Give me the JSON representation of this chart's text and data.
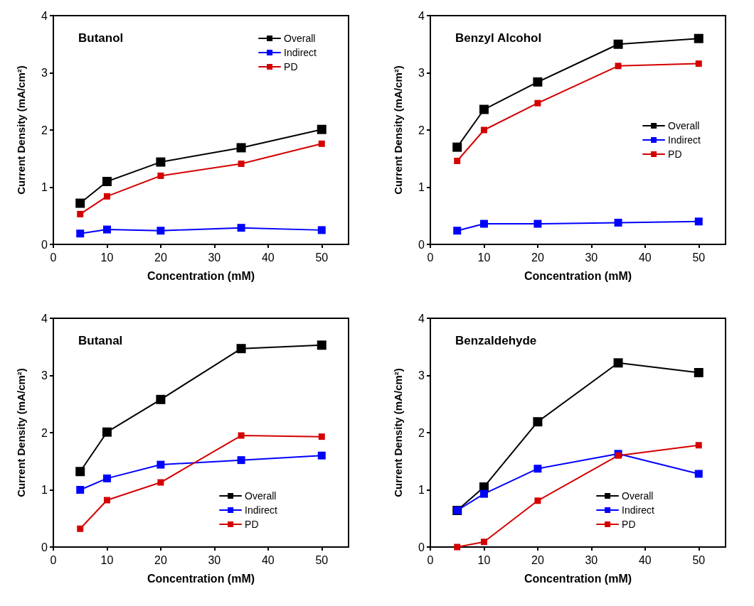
{
  "chart_data": [
    {
      "type": "line",
      "title": "Butanol",
      "xlabel": "Concentration (mM)",
      "ylabel": "Current Density (mA/cm²)",
      "x": [
        5,
        10,
        20,
        35,
        50
      ],
      "xlim": [
        0,
        55
      ],
      "xticks": [
        0,
        10,
        20,
        30,
        40,
        50
      ],
      "ylim": [
        0,
        4
      ],
      "yticks": [
        0,
        1,
        2,
        3,
        4
      ],
      "legend": "top right",
      "marker": "square",
      "line_style": "solid",
      "series": [
        {
          "name": "Overall",
          "color": "#000000",
          "values": [
            0.72,
            1.1,
            1.44,
            1.69,
            2.01
          ]
        },
        {
          "name": "Indirect",
          "color": "#0000ff",
          "values": [
            0.19,
            0.26,
            0.24,
            0.29,
            0.25
          ]
        },
        {
          "name": "PD",
          "color": "#d40000",
          "values": [
            0.53,
            0.84,
            1.2,
            1.41,
            1.76
          ]
        }
      ]
    },
    {
      "type": "line",
      "title": "Benzyl Alcohol",
      "xlabel": "Concentration (mM)",
      "ylabel": "Current Density (mA/cm²)",
      "x": [
        5,
        10,
        20,
        35,
        50
      ],
      "xlim": [
        0,
        55
      ],
      "xticks": [
        0,
        10,
        20,
        30,
        40,
        50
      ],
      "ylim": [
        0,
        4
      ],
      "yticks": [
        0,
        1,
        2,
        3,
        4
      ],
      "legend": "right",
      "marker": "square",
      "line_style": "solid",
      "series": [
        {
          "name": "Overall",
          "color": "#000000",
          "values": [
            1.7,
            2.36,
            2.84,
            3.5,
            3.6
          ]
        },
        {
          "name": "Indirect",
          "color": "#0000ff",
          "values": [
            0.24,
            0.36,
            0.36,
            0.38,
            0.4
          ]
        },
        {
          "name": "PD",
          "color": "#d40000",
          "values": [
            1.46,
            2.0,
            2.47,
            3.12,
            3.16
          ]
        }
      ]
    },
    {
      "type": "line",
      "title": "Butanal",
      "xlabel": "Concentration (mM)",
      "ylabel": "Current Density (mA/cm²)",
      "x": [
        5,
        10,
        20,
        35,
        50
      ],
      "xlim": [
        0,
        55
      ],
      "xticks": [
        0,
        10,
        20,
        30,
        40,
        50
      ],
      "ylim": [
        0,
        4
      ],
      "yticks": [
        0,
        1,
        2,
        3,
        4
      ],
      "legend": "bottom right",
      "marker": "square",
      "line_style": "solid",
      "series": [
        {
          "name": "Overall",
          "color": "#000000",
          "values": [
            1.32,
            2.01,
            2.58,
            3.47,
            3.53
          ]
        },
        {
          "name": "Indirect",
          "color": "#0000ff",
          "values": [
            1.0,
            1.2,
            1.44,
            1.52,
            1.6
          ]
        },
        {
          "name": "PD",
          "color": "#d40000",
          "values": [
            0.32,
            0.82,
            1.13,
            1.95,
            1.93
          ]
        }
      ]
    },
    {
      "type": "line",
      "title": "Benzaldehyde",
      "xlabel": "Concentration (mM)",
      "ylabel": "Current Density (mA/cm²)",
      "x": [
        5,
        10,
        20,
        35,
        50
      ],
      "xlim": [
        0,
        55
      ],
      "xticks": [
        0,
        10,
        20,
        30,
        40,
        50
      ],
      "ylim": [
        0,
        4
      ],
      "yticks": [
        0,
        1,
        2,
        3,
        4
      ],
      "legend": "bottom right",
      "marker": "square",
      "line_style": "solid",
      "series": [
        {
          "name": "Overall",
          "color": "#000000",
          "values": [
            0.64,
            1.05,
            2.19,
            3.22,
            3.05
          ]
        },
        {
          "name": "Indirect",
          "color": "#0000ff",
          "values": [
            0.64,
            0.93,
            1.37,
            1.63,
            1.28
          ]
        },
        {
          "name": "PD",
          "color": "#d40000",
          "values": [
            0.0,
            0.09,
            0.81,
            1.6,
            1.78
          ]
        }
      ]
    }
  ]
}
